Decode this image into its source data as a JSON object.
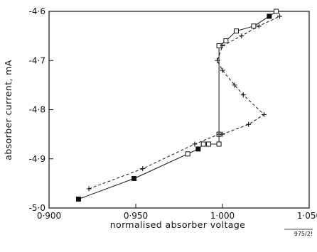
{
  "chart_data": {
    "type": "line",
    "xlabel": "normalised absorber voltage",
    "ylabel": "absorber current, mA",
    "xlim": [
      0.9,
      1.05
    ],
    "ylim": [
      -5.0,
      -4.6
    ],
    "x_ticks": [
      0.9,
      0.95,
      1.0,
      1.05
    ],
    "x_tick_labels": [
      "0·900",
      "0·950",
      "1·000",
      "1·050"
    ],
    "y_ticks": [
      -5.0,
      -4.9,
      -4.8,
      -4.7,
      -4.6
    ],
    "y_tick_labels": [
      "-5·0",
      "-4·9",
      "-4·8",
      "-4·7",
      "-4·6"
    ],
    "grid": false,
    "figure_id": "975/2!",
    "series": [
      {
        "marker": "square",
        "line_style": "solid",
        "color": "#111111",
        "points": [
          [
            0.917,
            -4.982
          ],
          [
            0.949,
            -4.94
          ],
          [
            0.98,
            -4.89
          ],
          [
            0.986,
            -4.88
          ],
          [
            0.989,
            -4.87
          ],
          [
            0.992,
            -4.87
          ],
          [
            0.998,
            -4.87
          ],
          [
            0.998,
            -4.85
          ],
          [
            0.998,
            -4.67
          ],
          [
            1.002,
            -4.66
          ],
          [
            1.008,
            -4.64
          ],
          [
            1.018,
            -4.63
          ],
          [
            1.027,
            -4.61
          ],
          [
            1.031,
            -4.6
          ]
        ]
      },
      {
        "marker": "plus",
        "line_style": "dashed",
        "color": "#111111",
        "points": [
          [
            0.923,
            -4.961
          ],
          [
            0.954,
            -4.92
          ],
          [
            0.984,
            -4.87
          ],
          [
            0.998,
            -4.85
          ],
          [
            1.0,
            -4.85
          ],
          [
            1.015,
            -4.83
          ],
          [
            1.024,
            -4.81
          ],
          [
            1.012,
            -4.77
          ],
          [
            1.007,
            -4.75
          ],
          [
            1.0,
            -4.72
          ],
          [
            0.997,
            -4.7
          ],
          [
            1.0,
            -4.67
          ],
          [
            1.011,
            -4.65
          ],
          [
            1.021,
            -4.63
          ],
          [
            1.033,
            -4.61
          ]
        ]
      }
    ]
  }
}
